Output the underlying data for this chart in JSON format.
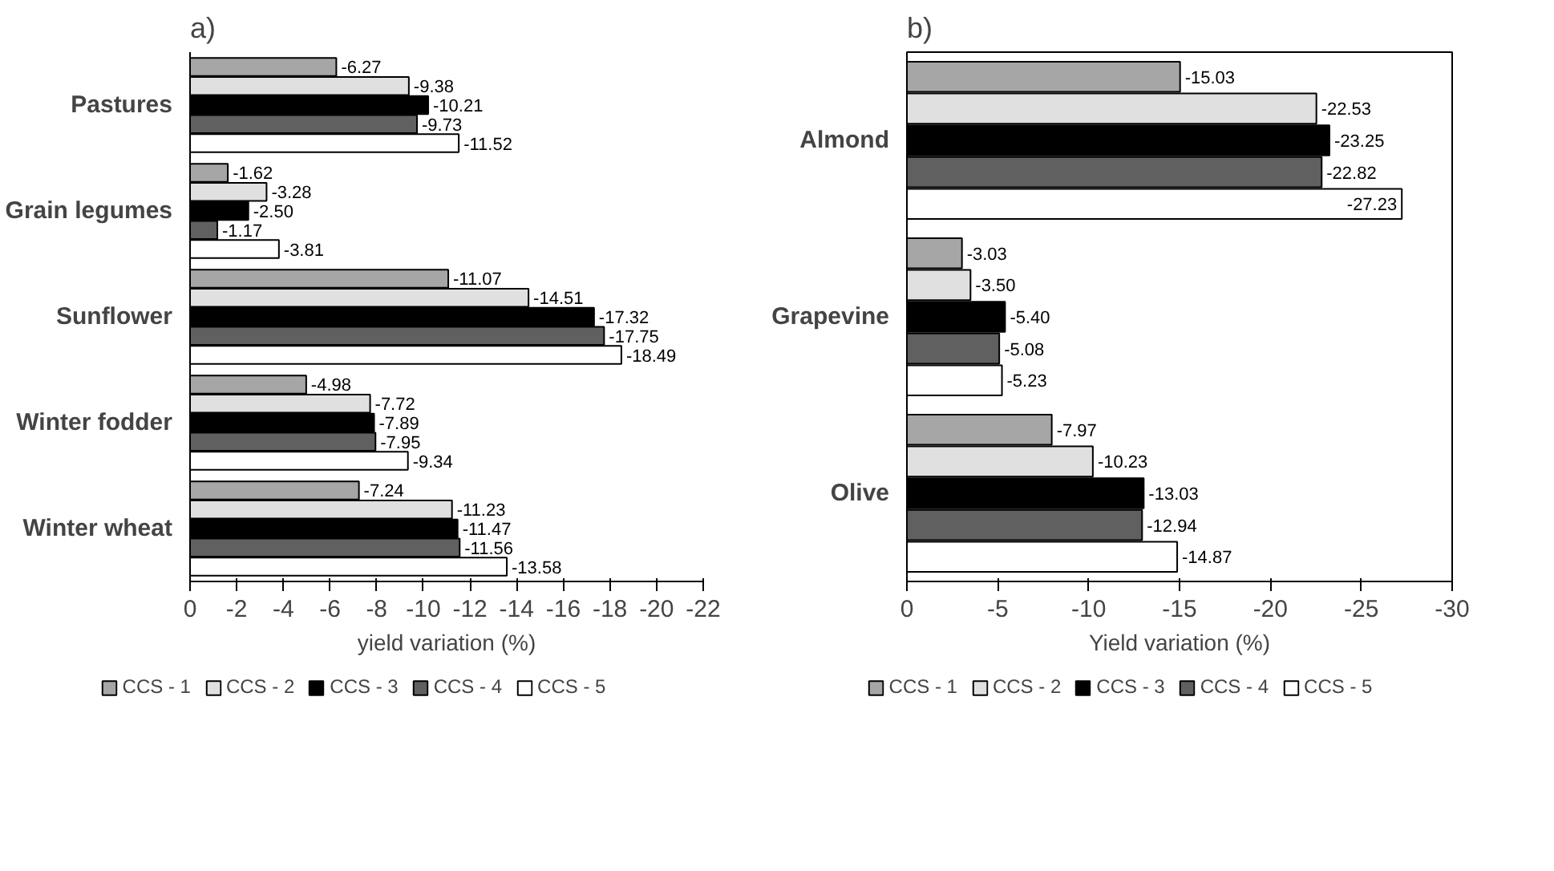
{
  "chart_data": [
    {
      "type": "bar",
      "orientation": "horizontal",
      "title": "a)",
      "xlabel": "yield variation (%)",
      "categories": [
        "Pastures",
        "Grain legumes",
        "Sunflower",
        "Winter fodder",
        "Winter wheat"
      ],
      "xlim": [
        0,
        -22
      ],
      "xticks": [
        0,
        -2,
        -4,
        -6,
        -8,
        -10,
        -12,
        -14,
        -16,
        -18,
        -20,
        -22
      ],
      "grid": false,
      "legend": "bottom",
      "data_labels": true,
      "series": [
        {
          "name": "CCS - 1",
          "color": "#a6a6a6",
          "values": [
            -6.27,
            -1.62,
            -11.07,
            -4.98,
            -7.24
          ],
          "value_labels": [
            "-6.27",
            "-1.62",
            "-11.07",
            "-4.98",
            "-7.24"
          ]
        },
        {
          "name": "CCS - 2",
          "color": "#e0e0e0",
          "values": [
            -9.38,
            -3.28,
            -14.51,
            -7.72,
            -11.23
          ],
          "value_labels": [
            "-9.38",
            "-3.28",
            "-14.51",
            "-7.72",
            "-11.23"
          ]
        },
        {
          "name": "CCS - 3",
          "color": "#000000",
          "values": [
            -10.21,
            -2.5,
            -17.32,
            -7.89,
            -11.47
          ],
          "value_labels": [
            "-10.21",
            "-2.50",
            "-17.32",
            "-7.89",
            "-11.47"
          ]
        },
        {
          "name": "CCS - 4",
          "color": "#606060",
          "values": [
            -9.73,
            -1.17,
            -17.75,
            -7.95,
            -11.56
          ],
          "value_labels": [
            "-9.73",
            "-1.17",
            "-17.75",
            "-7.95",
            "-11.56"
          ]
        },
        {
          "name": "CCS - 5",
          "color": "#ffffff",
          "values": [
            -11.52,
            -3.81,
            -18.49,
            -9.34,
            -13.58
          ],
          "value_labels": [
            "-11.52",
            "-3.81",
            "-18.49",
            "-9.34",
            "-13.58"
          ]
        }
      ]
    },
    {
      "type": "bar",
      "orientation": "horizontal",
      "title": "b)",
      "xlabel": "Yield variation (%)",
      "categories": [
        "Almond",
        "Grapevine",
        "Olive"
      ],
      "xlim": [
        0,
        -30
      ],
      "xticks": [
        0,
        -5,
        -10,
        -15,
        -20,
        -25,
        -30
      ],
      "grid": false,
      "legend": "bottom",
      "data_labels": true,
      "series": [
        {
          "name": "CCS - 1",
          "color": "#a6a6a6",
          "values": [
            -15.03,
            -3.03,
            -7.97
          ],
          "value_labels": [
            "-15.03",
            "-3.03",
            "-7.97"
          ]
        },
        {
          "name": "CCS - 2",
          "color": "#e0e0e0",
          "values": [
            -22.53,
            -3.5,
            -10.23
          ],
          "value_labels": [
            "-22.53",
            "-3.50",
            "-10.23"
          ]
        },
        {
          "name": "CCS - 3",
          "color": "#000000",
          "values": [
            -23.25,
            -5.4,
            -13.03
          ],
          "value_labels": [
            "-23.25",
            "-5.40",
            "-13.03"
          ]
        },
        {
          "name": "CCS - 4",
          "color": "#606060",
          "values": [
            -22.82,
            -5.08,
            -12.94
          ],
          "value_labels": [
            "-22.82",
            "-5.08",
            "-12.94"
          ]
        },
        {
          "name": "CCS - 5",
          "color": "#ffffff",
          "values": [
            -27.23,
            -5.23,
            -14.87
          ],
          "value_labels": [
            "-27.23",
            "-5.23",
            "-14.87"
          ]
        }
      ]
    }
  ]
}
